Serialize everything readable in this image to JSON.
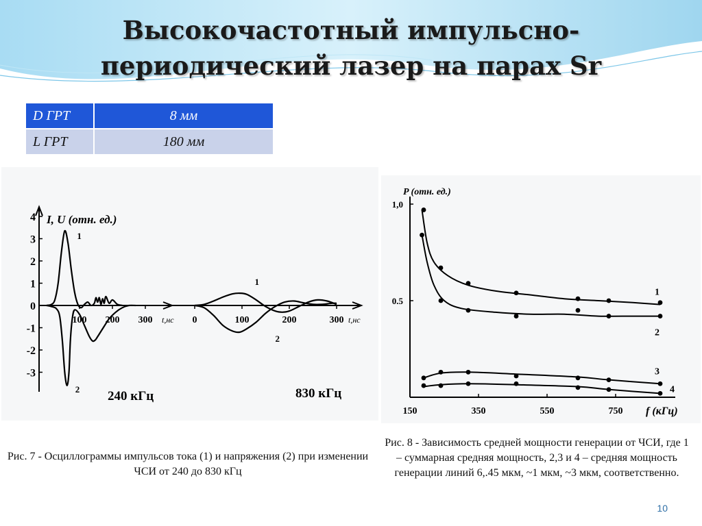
{
  "slide": {
    "title_line1": "Высокочастотный импульсно-",
    "title_line2": "периодический лазер на парах Sr",
    "page_number": "10"
  },
  "params_table": {
    "rows": [
      {
        "label": "D ГРТ",
        "value": "8 мм"
      },
      {
        "label": "L ГРТ",
        "value": "180 мм"
      }
    ]
  },
  "figure7": {
    "caption": "Рис. 7 - Осциллограммы  импульсов тока (1) и напряжения (2) при изменении ЧСИ от 240 до 830 кГц"
  },
  "figure8": {
    "caption": "Рис. 8 - Зависимость средней мощности генерации от ЧСИ, где 1 – суммарная средняя мощность, 2,3 и 4 – средняя мощность генерации линий 6,.45 мкм, ~1 мкм, ~3 мкм, соответственно."
  },
  "chart_data": [
    {
      "type": "line",
      "ylabel": "I, U (отн. ед.)",
      "ylim": [
        -4,
        4
      ],
      "yticks": [
        "4",
        "3",
        "2",
        "1",
        "0",
        "-1",
        "-2",
        "-3"
      ],
      "ytick_values": [
        4,
        3,
        2,
        1,
        0,
        -1,
        -2,
        -3
      ],
      "panels": [
        {
          "label": "240 кГц",
          "xlabel": "t,нс",
          "xlim": [
            0,
            300
          ],
          "xticks": [
            "100",
            "200",
            "300"
          ],
          "xtick_values": [
            100,
            200,
            300
          ],
          "series": [
            {
              "name": "1",
              "x": [
                0,
                15,
                25,
                35,
                45,
                55,
                65,
                75,
                85,
                95,
                105,
                115,
                125,
                135,
                145,
                150,
                155,
                160,
                165,
                170,
                175,
                180,
                190,
                200,
                215,
                230
              ],
              "y": [
                0,
                0.05,
                0.25,
                1.0,
                2.4,
                3.35,
                2.8,
                1.6,
                0.6,
                0.05,
                -0.1,
                0.05,
                0.15,
                0,
                0.1,
                0.35,
                0.15,
                0.35,
                0.05,
                0.3,
                0.1,
                0.4,
                0.1,
                0.25,
                0.05,
                0
              ]
            },
            {
              "name": "2",
              "x": [
                0,
                15,
                30,
                40,
                48,
                55,
                62,
                68,
                72,
                78,
                85,
                100,
                115,
                130,
                140,
                148,
                155,
                170,
                190,
                210,
                230,
                250,
                270
              ],
              "y": [
                0,
                -0.05,
                -0.15,
                -0.5,
                -1.6,
                -3.0,
                -3.6,
                -3.0,
                -1.6,
                -0.6,
                -0.2,
                -0.4,
                -0.9,
                -1.4,
                -1.6,
                -1.55,
                -1.4,
                -1.05,
                -0.6,
                -0.3,
                -0.1,
                0,
                0
              ]
            }
          ]
        },
        {
          "label": "830 кГц",
          "xlabel": "t,нс",
          "xlim": [
            0,
            300
          ],
          "xticks": [
            "0",
            "100",
            "200",
            "300"
          ],
          "xtick_values": [
            0,
            100,
            200,
            300
          ],
          "series": [
            {
              "name": "1",
              "x": [
                0,
                20,
                40,
                60,
                80,
                95,
                110,
                130,
                150,
                170,
                185,
                200,
                220,
                240,
                260,
                280,
                300
              ],
              "y": [
                0,
                0.05,
                0.2,
                0.38,
                0.52,
                0.55,
                0.5,
                0.25,
                -0.05,
                -0.25,
                -0.3,
                -0.25,
                -0.05,
                0.15,
                0.25,
                0.2,
                0.05
              ]
            },
            {
              "name": "2",
              "x": [
                0,
                20,
                40,
                60,
                80,
                95,
                110,
                130,
                150,
                170,
                190,
                210,
                230,
                250,
                270,
                290,
                300
              ],
              "y": [
                0,
                -0.1,
                -0.45,
                -0.9,
                -1.15,
                -1.2,
                -1.05,
                -0.75,
                -0.35,
                -0.05,
                0.15,
                0.2,
                0.12,
                0.05,
                0.05,
                0.1,
                0.1
              ]
            }
          ]
        }
      ]
    },
    {
      "type": "line",
      "ylabel": "P (отн. ед.)",
      "xlabel": "f (кГц)",
      "xlim": [
        150,
        900
      ],
      "ylim": [
        0,
        1.0
      ],
      "xticks": [
        "150",
        "350",
        "550",
        "750"
      ],
      "xtick_values": [
        150,
        350,
        550,
        750
      ],
      "yticks": [
        "1,0",
        "0.5"
      ],
      "ytick_values": [
        1.0,
        0.5
      ],
      "series": [
        {
          "name": "1",
          "x": [
            190,
            240,
            320,
            460,
            640,
            730,
            880
          ],
          "y": [
            0.97,
            0.67,
            0.59,
            0.54,
            0.51,
            0.5,
            0.49
          ],
          "curve_x": [
            185,
            200,
            220,
            260,
            320,
            400,
            500,
            600,
            700,
            800,
            880
          ],
          "curve_y": [
            0.97,
            0.8,
            0.7,
            0.63,
            0.58,
            0.55,
            0.53,
            0.51,
            0.5,
            0.49,
            0.48
          ]
        },
        {
          "name": "2",
          "x": [
            185,
            240,
            320,
            460,
            640,
            730,
            880
          ],
          "y": [
            0.84,
            0.5,
            0.45,
            0.42,
            0.45,
            0.42,
            0.42
          ],
          "curve_x": [
            185,
            200,
            220,
            250,
            300,
            400,
            500,
            600,
            700,
            800,
            880
          ],
          "curve_y": [
            0.84,
            0.7,
            0.58,
            0.5,
            0.46,
            0.44,
            0.43,
            0.43,
            0.42,
            0.42,
            0.42
          ]
        },
        {
          "name": "3",
          "x": [
            190,
            240,
            320,
            460,
            640,
            730,
            880
          ],
          "y": [
            0.1,
            0.13,
            0.13,
            0.11,
            0.1,
            0.09,
            0.07
          ],
          "curve_x": [
            190,
            240,
            320,
            460,
            640,
            730,
            880
          ],
          "curve_y": [
            0.1,
            0.125,
            0.13,
            0.12,
            0.105,
            0.09,
            0.07
          ]
        },
        {
          "name": "4",
          "x": [
            190,
            240,
            320,
            460,
            640,
            730,
            880
          ],
          "y": [
            0.06,
            0.06,
            0.07,
            0.07,
            0.05,
            0.04,
            0.02
          ],
          "curve_x": [
            190,
            240,
            320,
            460,
            640,
            730,
            880
          ],
          "curve_y": [
            0.055,
            0.065,
            0.07,
            0.065,
            0.055,
            0.04,
            0.02
          ]
        }
      ]
    }
  ]
}
